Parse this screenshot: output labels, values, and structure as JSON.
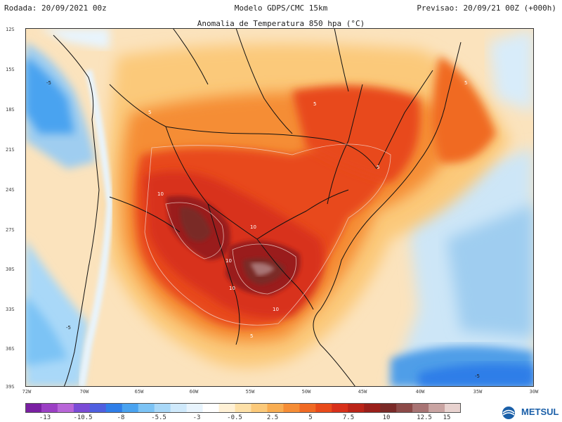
{
  "header": {
    "run_label": "Rodada: 20/09/2021 00z",
    "model_label": "Modelo GDPS/CMC 15km",
    "forecast_label": "Previsao: 20/09/21 00Z (+000h)"
  },
  "map": {
    "title": "Anomalia de Temperatura 850 hpa (°C)",
    "lat_labels": [
      "12S",
      "15S",
      "18S",
      "21S",
      "24S",
      "27S",
      "30S",
      "33S",
      "36S",
      "39S"
    ],
    "lon_labels": [
      "72W",
      "70W",
      "65W",
      "60W",
      "55W",
      "50W",
      "45W",
      "40W",
      "35W",
      "30W"
    ],
    "contour_labels": [
      "5",
      "5",
      "5",
      "5",
      "5",
      "10",
      "10",
      "10",
      "10",
      "10",
      "-5",
      "-5",
      "-5"
    ]
  },
  "colorbar": {
    "tick_labels": [
      "-13",
      "-10.5",
      "-8",
      "-5.5",
      "-3",
      "-0.5",
      "2.5",
      "5",
      "7.5",
      "10",
      "12.5",
      "15"
    ],
    "colors": [
      "#7a1fa2",
      "#9b3fc4",
      "#b866d8",
      "#7a4bd6",
      "#4f5fe0",
      "#2f7ee8",
      "#4aa3f0",
      "#7cc3f5",
      "#a9d8f8",
      "#cfe9fb",
      "#e8f4fd",
      "#ffffff",
      "#fff1d6",
      "#fde0a8",
      "#fbc97a",
      "#f8ad52",
      "#f58d36",
      "#f06a24",
      "#e84a1a",
      "#d8301a",
      "#bb2418",
      "#9a1f1a",
      "#7a2a28",
      "#8c4a48",
      "#a87474",
      "#c9a4a2",
      "#e8d2cf"
    ]
  },
  "logo": {
    "text": "METSUL"
  }
}
